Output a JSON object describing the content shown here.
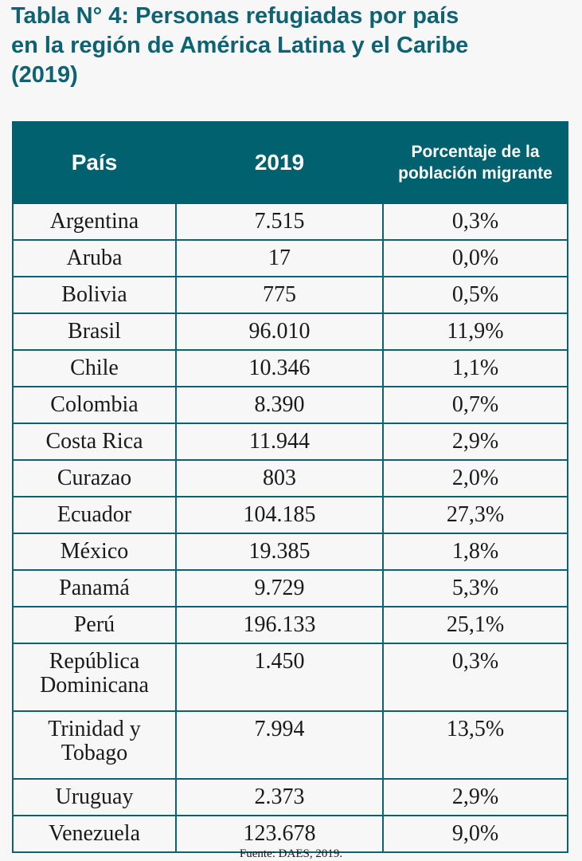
{
  "title": {
    "line1": "Tabla N° 4: Personas refugiadas por país",
    "line2": "en la región de América Latina y el Caribe",
    "line3": "(2019)"
  },
  "table": {
    "headers": {
      "country": "País",
      "year": "2019",
      "percent": "Porcentaje de la población migrante"
    },
    "rows": [
      {
        "country": "Argentina",
        "value": "7.515",
        "percent": "0,3%"
      },
      {
        "country": "Aruba",
        "value": "17",
        "percent": "0,0%"
      },
      {
        "country": "Bolivia",
        "value": "775",
        "percent": "0,5%"
      },
      {
        "country": "Brasil",
        "value": "96.010",
        "percent": "11,9%"
      },
      {
        "country": "Chile",
        "value": "10.346",
        "percent": "1,1%"
      },
      {
        "country": "Colombia",
        "value": "8.390",
        "percent": "0,7%"
      },
      {
        "country": "Costa Rica",
        "value": "11.944",
        "percent": "2,9%"
      },
      {
        "country": "Curazao",
        "value": "803",
        "percent": "2,0%"
      },
      {
        "country": "Ecuador",
        "value": "104.185",
        "percent": "27,3%"
      },
      {
        "country": "México",
        "value": "19.385",
        "percent": "1,8%"
      },
      {
        "country": "Panamá",
        "value": "9.729",
        "percent": "5,3%"
      },
      {
        "country": "Perú",
        "value": "196.133",
        "percent": "25,1%"
      },
      {
        "country": "República Dominicana",
        "value": "1.450",
        "percent": "0,3%"
      },
      {
        "country": "Trinidad y Tobago",
        "value": "7.994",
        "percent": "13,5%"
      },
      {
        "country": "Uruguay",
        "value": "2.373",
        "percent": "2,9%"
      },
      {
        "country": "Venezuela",
        "value": "123.678",
        "percent": "9,0%"
      }
    ]
  },
  "source": "Fuente: DAES, 2019.",
  "colors": {
    "header_bg": "#01616f",
    "title": "#0e6373",
    "border": "#0b6271",
    "background": "#f7f7f7"
  }
}
